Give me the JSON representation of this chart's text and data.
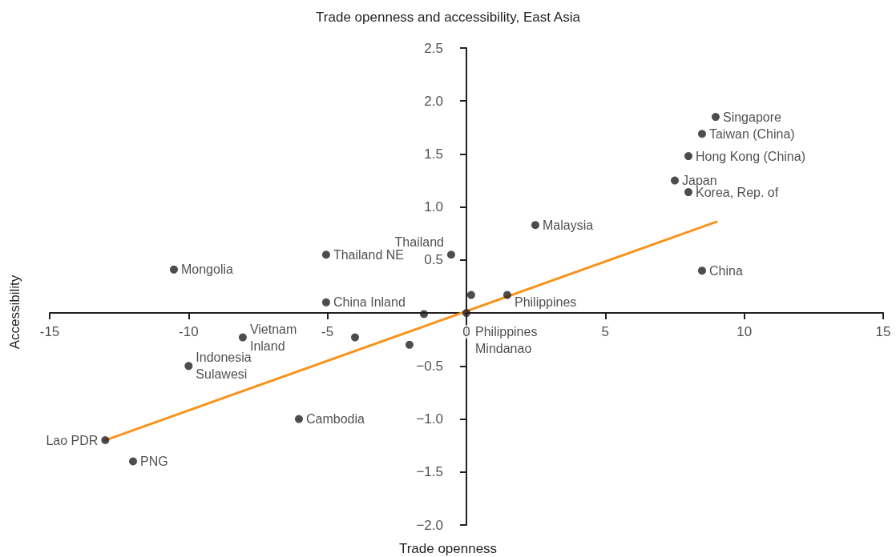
{
  "chart_data": {
    "type": "scatter",
    "title": "Trade openness and accessibility, East Asia",
    "xlabel": "Trade openness",
    "ylabel": "Accessibility",
    "xlim": [
      -15,
      15
    ],
    "xticks": [
      -15,
      -10,
      -5,
      0,
      5,
      10,
      15
    ],
    "ylim": [
      -2,
      2.5
    ],
    "yticks": [
      {
        "value": -2,
        "label": "−2.0"
      },
      {
        "value": -1.5,
        "label": "−1.5"
      },
      {
        "value": -1,
        "label": "−1.0"
      },
      {
        "value": -0.5,
        "label": "−0.5"
      },
      {
        "value": 0.5,
        "label": "0.5"
      },
      {
        "value": 1,
        "label": "1.0"
      },
      {
        "value": 1.5,
        "label": "1.5"
      },
      {
        "value": 2,
        "label": "2.0"
      },
      {
        "value": 2.5,
        "label": "2.5"
      }
    ],
    "grid": false,
    "series": [
      {
        "marker": "circle",
        "color": "#231f20",
        "x": [
          8.97,
          8.48,
          7.99,
          7.5,
          7.99,
          2.48,
          8.48,
          -0.55,
          -5.05,
          -10.53,
          -5.05,
          -1.53,
          0.17,
          1.47,
          0,
          -8.05,
          -4.01,
          -2.05,
          -10,
          -6.03,
          -13,
          -12
        ],
        "values": [
          1.85,
          1.69,
          1.48,
          1.25,
          1.14,
          0.83,
          0.4,
          0.55,
          0.55,
          0.41,
          0.1,
          -0.01,
          0.17,
          0.17,
          0,
          -0.23,
          -0.23,
          -0.3,
          -0.5,
          -1,
          -1.2,
          -1.4
        ]
      },
      {
        "type": "line",
        "color": "#f7941d",
        "x": [
          -13,
          9
        ],
        "values": [
          -1.2,
          0.86
        ]
      }
    ],
    "annotations": [
      {
        "text": "Singapore",
        "x": 8.97,
        "y": 1.85
      },
      {
        "text": "Taiwan (China)",
        "x": 8.48,
        "y": 1.69
      },
      {
        "text": "Hong Kong (China)",
        "x": 7.99,
        "y": 1.48
      },
      {
        "text": "Japan",
        "x": 7.5,
        "y": 1.25
      },
      {
        "text": "Korea, Rep. of",
        "x": 7.99,
        "y": 1.14
      },
      {
        "text": "Malaysia",
        "x": 2.48,
        "y": 0.83
      },
      {
        "text": "China",
        "x": 8.48,
        "y": 0.4
      },
      {
        "text": "Thailand",
        "x": -0.55,
        "y": 0.55
      },
      {
        "text": "Thailand NE",
        "x": -5.05,
        "y": 0.55
      },
      {
        "text": "Mongolia",
        "x": -10.53,
        "y": 0.41
      },
      {
        "text": "China Inland",
        "x": -5.05,
        "y": 0.1
      },
      {
        "text": "Philippines",
        "x": 1.47,
        "y": 0.17
      },
      {
        "text": "Philippines\nMindanao",
        "x": 0,
        "y": 0
      },
      {
        "text": "Vietnam\nInland",
        "x": -8.05,
        "y": -0.23
      },
      {
        "text": "Indonesia\nSulawesi",
        "x": -10,
        "y": -0.5
      },
      {
        "text": "Cambodia",
        "x": -6.03,
        "y": -1
      },
      {
        "text": "Lao PDR",
        "x": -13,
        "y": -1.2
      },
      {
        "text": "PNG",
        "x": -12,
        "y": -1.4
      }
    ]
  }
}
